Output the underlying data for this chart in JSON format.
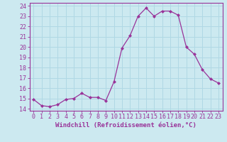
{
  "x": [
    0,
    1,
    2,
    3,
    4,
    5,
    6,
    7,
    8,
    9,
    10,
    11,
    12,
    13,
    14,
    15,
    16,
    17,
    18,
    19,
    20,
    21,
    22,
    23
  ],
  "y": [
    14.9,
    14.3,
    14.2,
    14.4,
    14.9,
    15.0,
    15.5,
    15.1,
    15.1,
    14.8,
    16.6,
    19.9,
    21.1,
    23.0,
    23.8,
    23.0,
    23.5,
    23.5,
    23.1,
    20.0,
    19.3,
    17.8,
    16.9,
    16.5
  ],
  "line_color": "#993399",
  "marker": "D",
  "markersize": 2.0,
  "linewidth": 0.9,
  "xlabel": "Windchill (Refroidissement éolien,°C)",
  "xlabel_fontsize": 6.5,
  "ylabel_ticks": [
    14,
    15,
    16,
    17,
    18,
    19,
    20,
    21,
    22,
    23,
    24
  ],
  "xlim": [
    -0.5,
    23.5
  ],
  "ylim": [
    13.8,
    24.3
  ],
  "bg_color": "#cce9f0",
  "grid_color": "#b0d8e4",
  "tick_fontsize": 6.0,
  "title": ""
}
